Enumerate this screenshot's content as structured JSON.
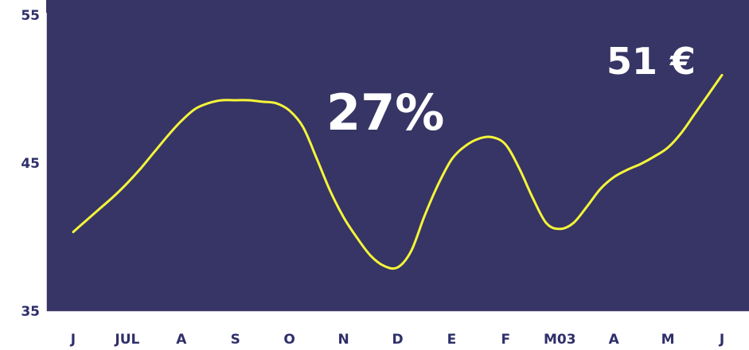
{
  "chart_data": {
    "type": "line",
    "title": "",
    "xlabel": "",
    "ylabel": "",
    "ylim": [
      35,
      55
    ],
    "y_ticks": [
      "35",
      "45",
      "55"
    ],
    "x_tick_labels": [
      "J",
      "JUL",
      "A",
      "S",
      "O",
      "N",
      "D",
      "E",
      "F",
      "M03",
      "A",
      "M",
      "J"
    ],
    "grid": false,
    "series": [
      {
        "x": [
          0,
          0.25,
          0.5,
          0.75,
          1,
          1.25,
          1.5,
          1.75,
          2,
          2.25,
          2.5,
          2.75,
          3,
          3.25,
          3.5,
          3.75,
          4,
          4.25,
          4.5,
          4.75,
          5,
          5.25,
          5.5,
          5.75,
          6,
          6.25,
          6.5,
          6.75,
          7,
          7.25,
          7.5,
          7.75,
          8,
          8.25,
          8.5,
          8.75,
          9,
          9.25,
          9.5,
          9.75,
          10,
          10.25,
          10.5,
          10.75,
          11,
          11.25,
          11.5,
          11.75,
          12
        ],
        "values": [
          40.4,
          41.2,
          42.0,
          42.8,
          43.7,
          44.7,
          45.8,
          46.9,
          47.9,
          48.7,
          49.1,
          49.3,
          49.3,
          49.3,
          49.2,
          49.1,
          48.6,
          47.5,
          45.4,
          43.2,
          41.4,
          40.0,
          38.8,
          38.1,
          38.0,
          39.1,
          41.5,
          43.6,
          45.3,
          46.2,
          46.7,
          46.8,
          46.3,
          44.7,
          42.7,
          41.0,
          40.6,
          41.0,
          42.1,
          43.3,
          44.1,
          44.6,
          45.0,
          45.5,
          46.1,
          47.1,
          48.4,
          49.7,
          51.0
        ]
      }
    ],
    "annotations": [
      "27%",
      "51 €"
    ],
    "colors": {
      "background": "#ffffff",
      "plot_background": "#363565",
      "line": "#f5f53a",
      "axis": "#ffffff",
      "label_text": "#2f2f6a",
      "annotation_text": "#ffffff"
    }
  }
}
